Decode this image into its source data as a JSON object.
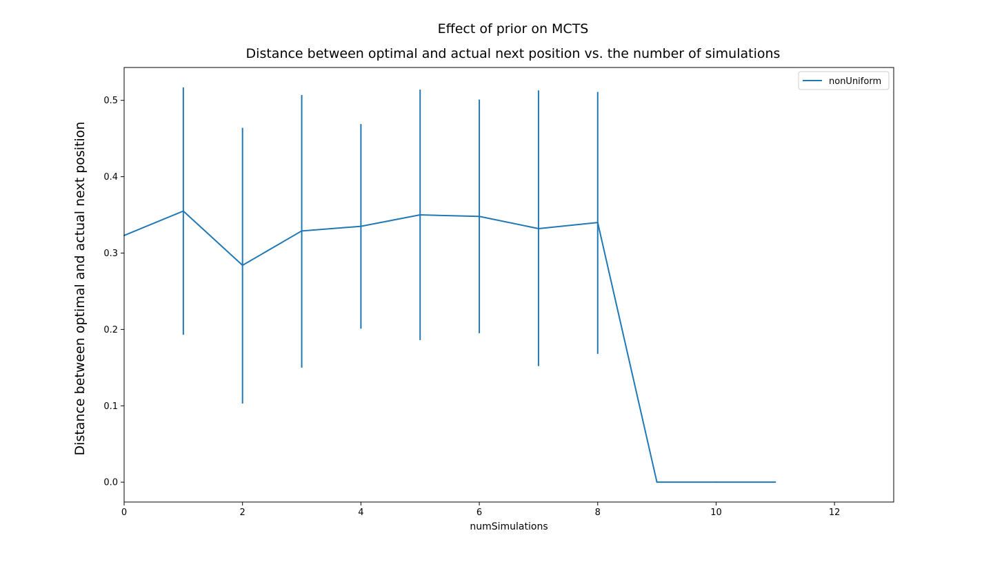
{
  "chart_data": {
    "type": "line",
    "suptitle": "Effect of prior on MCTS",
    "title": "Distance between optimal and actual next position vs. the number of simulations",
    "xlabel": "numSimulations",
    "ylabel": "Distance between optimal and actual next position",
    "xlim": [
      0,
      13
    ],
    "ylim": [
      -0.026,
      0.543
    ],
    "xticks": [
      0,
      2,
      4,
      6,
      8,
      10,
      12
    ],
    "yticks": [
      0.0,
      0.1,
      0.2,
      0.3,
      0.4,
      0.5
    ],
    "grid": false,
    "legend_position": "top-right",
    "series": [
      {
        "name": "nonUniform",
        "color": "#1f77b4",
        "x": [
          0,
          1,
          2,
          3,
          4,
          5,
          6,
          7,
          8,
          9,
          10,
          11
        ],
        "y": [
          0.323,
          0.355,
          0.284,
          0.329,
          0.335,
          0.35,
          0.348,
          0.332,
          0.34,
          0.0,
          0.0,
          0.0
        ],
        "error_bars": [
          {
            "x": 1,
            "low": 0.193,
            "high": 0.517
          },
          {
            "x": 2,
            "low": 0.103,
            "high": 0.464
          },
          {
            "x": 3,
            "low": 0.15,
            "high": 0.507
          },
          {
            "x": 4,
            "low": 0.201,
            "high": 0.469
          },
          {
            "x": 5,
            "low": 0.186,
            "high": 0.514
          },
          {
            "x": 6,
            "low": 0.195,
            "high": 0.501
          },
          {
            "x": 7,
            "low": 0.152,
            "high": 0.513
          },
          {
            "x": 8,
            "low": 0.168,
            "high": 0.511
          }
        ]
      }
    ]
  }
}
